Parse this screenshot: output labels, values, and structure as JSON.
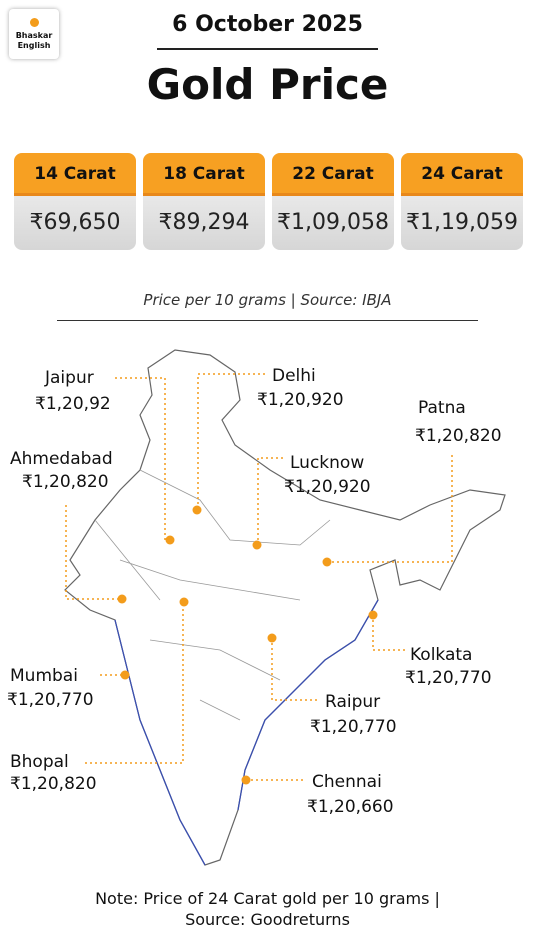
{
  "logo": {
    "line1": "Bhaskar",
    "line2": "English"
  },
  "header": {
    "date": "6 October 2025",
    "title": "Gold Price"
  },
  "cards": [
    {
      "label": "14 Carat",
      "price": "₹69,650"
    },
    {
      "label": "18 Carat",
      "price": "₹89,294"
    },
    {
      "label": "22 Carat",
      "price": "₹1,09,058"
    },
    {
      "label": "24 Carat",
      "price": "₹1,19,059"
    }
  ],
  "source": "Price per 10 grams | Source: IBJA",
  "cities": [
    {
      "name": "Jaipur",
      "price": "₹1,20,92"
    },
    {
      "name": "Delhi",
      "price": "₹1,20,920"
    },
    {
      "name": "Patna",
      "price": "₹1,20,820"
    },
    {
      "name": "Ahmedabad",
      "price": "₹1,20,820"
    },
    {
      "name": "Lucknow",
      "price": "₹1,20,920"
    },
    {
      "name": "Mumbai",
      "price": "₹1,20,770"
    },
    {
      "name": "Kolkata",
      "price": "₹1,20,770"
    },
    {
      "name": "Raipur",
      "price": "₹1,20,770"
    },
    {
      "name": "Bhopal",
      "price": "₹1,20,820"
    },
    {
      "name": "Chennai",
      "price": "₹1,20,660"
    }
  ],
  "note": {
    "line1": "Note: Price of 24 Carat gold per 10 grams |",
    "line2": "Source: Goodreturns"
  }
}
